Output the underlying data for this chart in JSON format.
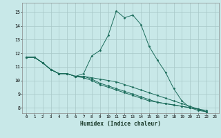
{
  "xlabel": "Humidex (Indice chaleur)",
  "background_color": "#c8e8e8",
  "grid_color": "#a8c8c8",
  "line_color": "#1a6b5a",
  "xlim": [
    -0.5,
    23.5
  ],
  "ylim": [
    7.6,
    15.7
  ],
  "yticks": [
    8,
    9,
    10,
    11,
    12,
    13,
    14,
    15
  ],
  "xticks": [
    0,
    1,
    2,
    3,
    4,
    5,
    6,
    7,
    8,
    9,
    10,
    11,
    12,
    13,
    14,
    15,
    16,
    17,
    18,
    19,
    20,
    21,
    22,
    23
  ],
  "curve1_x": [
    0,
    1,
    2,
    3,
    4,
    5,
    6,
    7,
    8,
    9,
    10,
    11,
    12,
    13,
    14,
    15,
    16,
    17,
    18,
    19,
    20,
    21,
    22
  ],
  "curve1_y": [
    11.7,
    11.7,
    11.3,
    10.8,
    10.5,
    10.5,
    10.3,
    10.5,
    11.8,
    12.2,
    13.3,
    15.1,
    14.6,
    14.8,
    14.1,
    12.5,
    11.5,
    10.6,
    9.4,
    8.5,
    8.0,
    7.8,
    7.7
  ],
  "curve2_x": [
    0,
    1,
    2,
    3,
    4,
    5,
    6,
    7,
    8,
    9,
    10,
    11,
    12,
    13,
    14,
    15,
    16,
    17,
    18,
    19,
    20,
    21,
    22
  ],
  "curve2_y": [
    11.7,
    11.7,
    11.3,
    10.8,
    10.5,
    10.5,
    10.3,
    10.3,
    10.2,
    10.1,
    10.0,
    9.9,
    9.7,
    9.5,
    9.3,
    9.1,
    8.9,
    8.7,
    8.5,
    8.3,
    8.1,
    7.9,
    7.8
  ],
  "curve3_x": [
    0,
    1,
    2,
    3,
    4,
    5,
    6,
    7,
    8,
    9,
    10,
    11,
    12,
    13,
    14,
    15,
    16,
    17,
    18,
    19,
    20,
    21,
    22
  ],
  "curve3_y": [
    11.7,
    11.7,
    11.3,
    10.8,
    10.5,
    10.5,
    10.3,
    10.3,
    10.1,
    9.8,
    9.6,
    9.4,
    9.2,
    9.0,
    8.8,
    8.6,
    8.4,
    8.3,
    8.2,
    8.1,
    8.0,
    7.9,
    7.7
  ],
  "curve4_x": [
    0,
    1,
    2,
    3,
    4,
    5,
    6,
    7,
    8,
    9,
    10,
    11,
    12,
    13,
    14,
    15,
    16,
    17,
    18,
    19,
    20,
    21,
    22
  ],
  "curve4_y": [
    11.7,
    11.7,
    11.3,
    10.8,
    10.5,
    10.5,
    10.3,
    10.2,
    10.0,
    9.7,
    9.5,
    9.3,
    9.1,
    8.9,
    8.7,
    8.5,
    8.4,
    8.3,
    8.2,
    8.1,
    8.0,
    7.9,
    7.7
  ]
}
